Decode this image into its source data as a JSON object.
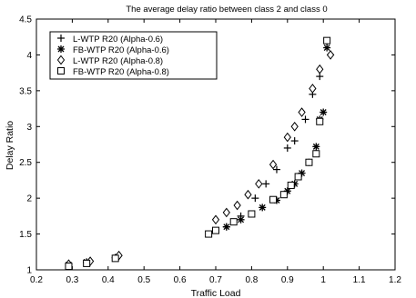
{
  "chart_data": {
    "type": "scatter",
    "title": "The average delay ratio between class 2 and class 0",
    "xlabel": "Traffic Load",
    "ylabel": "Delay Ratio",
    "xlim": [
      0.2,
      1.2
    ],
    "ylim": [
      1,
      4.5
    ],
    "x_ticks": [
      0.2,
      0.3,
      0.4,
      0.5,
      0.6,
      0.7,
      0.8,
      0.9,
      1,
      1.1,
      1.2
    ],
    "y_ticks": [
      1,
      1.5,
      2,
      2.5,
      3,
      3.5,
      4,
      4.5
    ],
    "x_tick_labels": [
      "0.2",
      "0.3",
      "0.4",
      "0.5",
      "0.6",
      "0.7",
      "0.8",
      "0.9",
      "1",
      "1.1",
      "1.2"
    ],
    "y_tick_labels": [
      "1",
      "1.5",
      "2",
      "2.5",
      "3",
      "3.5",
      "4",
      "4.5"
    ],
    "grid": false,
    "legend_position": "top-left",
    "series": [
      {
        "name": "L-WTP R20 (Alpha-0.6)",
        "marker": "plus",
        "x": [
          0.29,
          0.34,
          0.42,
          0.73,
          0.77,
          0.81,
          0.84,
          0.87,
          0.9,
          0.92,
          0.95,
          0.97,
          0.99,
          1.02
        ],
        "y": [
          1.05,
          1.1,
          1.17,
          1.6,
          1.75,
          2.0,
          2.2,
          2.4,
          2.7,
          2.8,
          3.1,
          3.45,
          3.7,
          4.0
        ]
      },
      {
        "name": "FB-WTP R20 (Alpha-0.6)",
        "marker": "star",
        "x": [
          0.29,
          0.34,
          0.42,
          0.73,
          0.77,
          0.83,
          0.87,
          0.9,
          0.92,
          0.94,
          0.96,
          0.98,
          0.99,
          1.0,
          1.01
        ],
        "y": [
          1.07,
          1.11,
          1.17,
          1.6,
          1.7,
          1.87,
          1.97,
          2.1,
          2.2,
          2.35,
          2.5,
          2.72,
          3.1,
          3.2,
          4.1
        ]
      },
      {
        "name": "L-WTP R20 (Alpha-0.8)",
        "marker": "diamond",
        "x": [
          0.29,
          0.35,
          0.43,
          0.7,
          0.73,
          0.76,
          0.79,
          0.82,
          0.86,
          0.9,
          0.92,
          0.94,
          0.97,
          0.99,
          1.02
        ],
        "y": [
          1.08,
          1.12,
          1.2,
          1.7,
          1.8,
          1.9,
          2.05,
          2.2,
          2.47,
          2.85,
          3.0,
          3.2,
          3.53,
          3.8,
          4.0
        ]
      },
      {
        "name": "FB-WTP R20 (Alpha-0.8)",
        "marker": "square",
        "x": [
          0.29,
          0.34,
          0.42,
          0.68,
          0.7,
          0.75,
          0.8,
          0.86,
          0.89,
          0.91,
          0.93,
          0.96,
          0.98,
          0.99,
          1.01
        ],
        "y": [
          1.05,
          1.09,
          1.16,
          1.5,
          1.55,
          1.67,
          1.78,
          1.98,
          2.05,
          2.18,
          2.3,
          2.5,
          2.62,
          3.07,
          4.2
        ]
      }
    ]
  }
}
